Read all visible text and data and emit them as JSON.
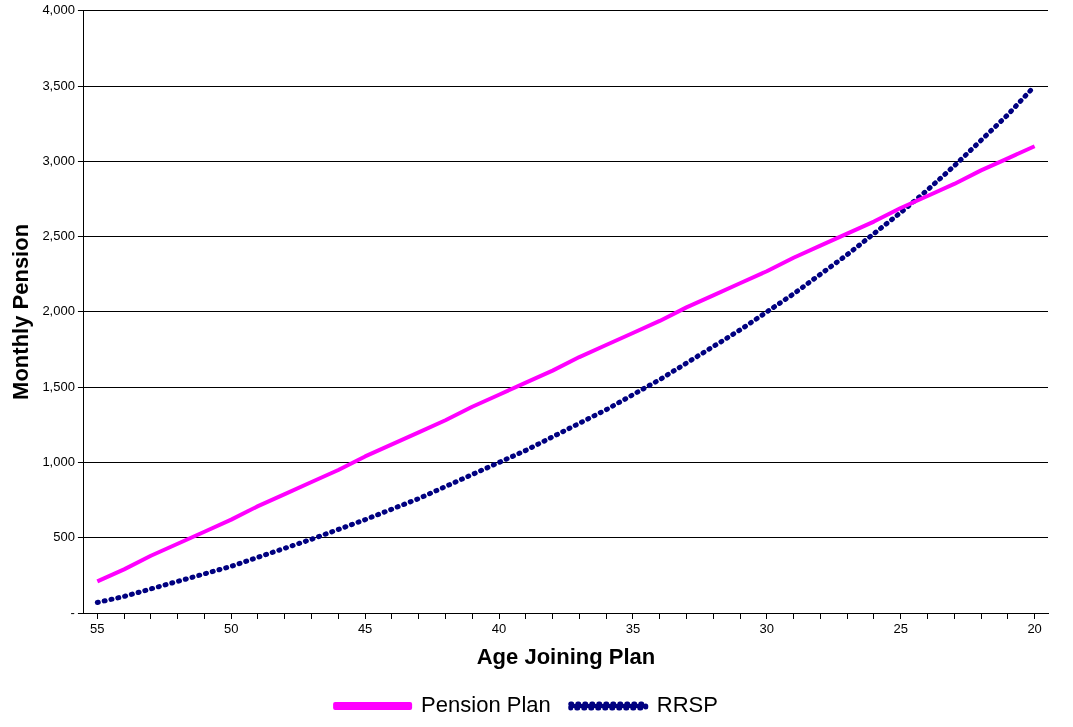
{
  "chart_data": {
    "type": "line",
    "xlabel": "Age Joining Plan",
    "ylabel": "Monthly Pension",
    "categories": [
      "55",
      null,
      null,
      null,
      null,
      "50",
      null,
      null,
      null,
      null,
      "45",
      null,
      null,
      null,
      null,
      "40",
      null,
      null,
      null,
      null,
      "35",
      null,
      null,
      null,
      null,
      "30",
      null,
      null,
      null,
      null,
      "25",
      null,
      null,
      null,
      null,
      "20"
    ],
    "series": [
      {
        "name": "Pension Plan",
        "color": "#ff00ff",
        "line_style": "solid",
        "values": [
          210,
          290,
          380,
          460,
          540,
          620,
          710,
          790,
          870,
          950,
          1040,
          1120,
          1200,
          1280,
          1370,
          1450,
          1530,
          1610,
          1700,
          1780,
          1860,
          1940,
          2030,
          2110,
          2190,
          2270,
          2360,
          2440,
          2520,
          2600,
          2690,
          2770,
          2850,
          2940,
          3020,
          3100
        ]
      },
      {
        "name": "RRSP",
        "color": "#000080",
        "line_style": "dotted",
        "values": [
          70,
          110,
          160,
          210,
          260,
          310,
          370,
          430,
          490,
          555,
          620,
          690,
          760,
          840,
          920,
          1000,
          1080,
          1170,
          1260,
          1350,
          1450,
          1550,
          1660,
          1770,
          1880,
          2000,
          2120,
          2250,
          2380,
          2520,
          2660,
          2810,
          2970,
          3140,
          3310,
          3500
        ]
      }
    ],
    "ylim": [
      0,
      4000
    ],
    "yticks": [
      {
        "value": 0,
        "label": "-"
      },
      {
        "value": 500,
        "label": "500"
      },
      {
        "value": 1000,
        "label": "1,000"
      },
      {
        "value": 1500,
        "label": "1,500"
      },
      {
        "value": 2000,
        "label": "2,000"
      },
      {
        "value": 2500,
        "label": "2,500"
      },
      {
        "value": 3000,
        "label": "3,000"
      },
      {
        "value": 3500,
        "label": "3,500"
      },
      {
        "value": 4000,
        "label": "4,000"
      }
    ],
    "grid": "y",
    "legend": "bottom",
    "marker": "none"
  }
}
